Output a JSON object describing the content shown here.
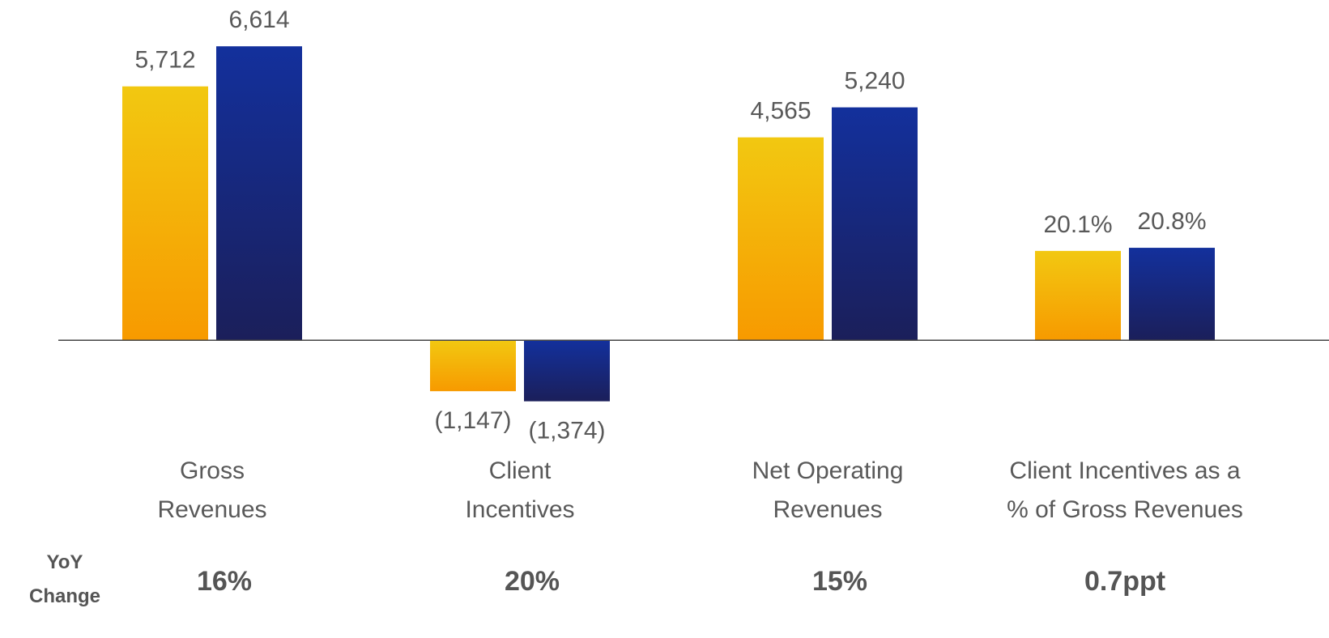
{
  "chart_data": [
    {
      "type": "bar",
      "categories": [
        "Gross\nRevenues",
        "Client\nIncentives",
        "Net Operating\nRevenues"
      ],
      "series": [
        {
          "color": "#f2c811",
          "gradient_to": "#f79a00",
          "values": [
            5712,
            -1147,
            4565
          ],
          "value_labels": [
            "5,712",
            "(1,147)",
            "4,565"
          ]
        },
        {
          "color": "#13309c",
          "gradient_to": "#1b1f5a",
          "values": [
            6614,
            -1374,
            5240
          ],
          "value_labels": [
            "6,614",
            "(1,374)",
            "5,240"
          ]
        }
      ],
      "ylim": [
        -2000,
        7000
      ]
    },
    {
      "type": "bar",
      "categories": [
        "Client Incentives as a\n% of Gross Revenues"
      ],
      "series": [
        {
          "color": "#f2c811",
          "gradient_to": "#f79a00",
          "values": [
            20.1
          ],
          "value_labels": [
            "20.1%"
          ]
        },
        {
          "color": "#13309c",
          "gradient_to": "#1b1f5a",
          "values": [
            20.8
          ],
          "value_labels": [
            "20.8%"
          ]
        }
      ],
      "ylim": [
        -20,
        70
      ]
    }
  ],
  "yoy": {
    "label": "YoY\nChange",
    "values": [
      "16%",
      "20%",
      "15%",
      "0.7ppt"
    ]
  }
}
